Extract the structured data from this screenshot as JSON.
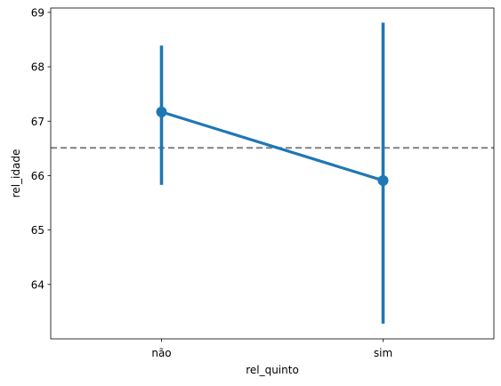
{
  "chart_data": {
    "type": "line",
    "subtype": "pointplot",
    "title": "",
    "xlabel": "rel_quinto",
    "ylabel": "rel_idade",
    "categories": [
      "não",
      "sim"
    ],
    "series": [
      {
        "values": [
          67.17,
          65.91
        ],
        "ci_low": [
          65.83,
          63.28
        ],
        "ci_high": [
          68.39,
          68.81
        ],
        "color": "#1f77b4"
      }
    ],
    "reference_line": {
      "y": 66.51,
      "style": "dashed",
      "color": "#808080"
    },
    "ylim": [
      63.0,
      69.08
    ],
    "yticks": [
      64,
      65,
      66,
      67,
      68,
      69
    ],
    "grid": false,
    "legend": "none"
  }
}
